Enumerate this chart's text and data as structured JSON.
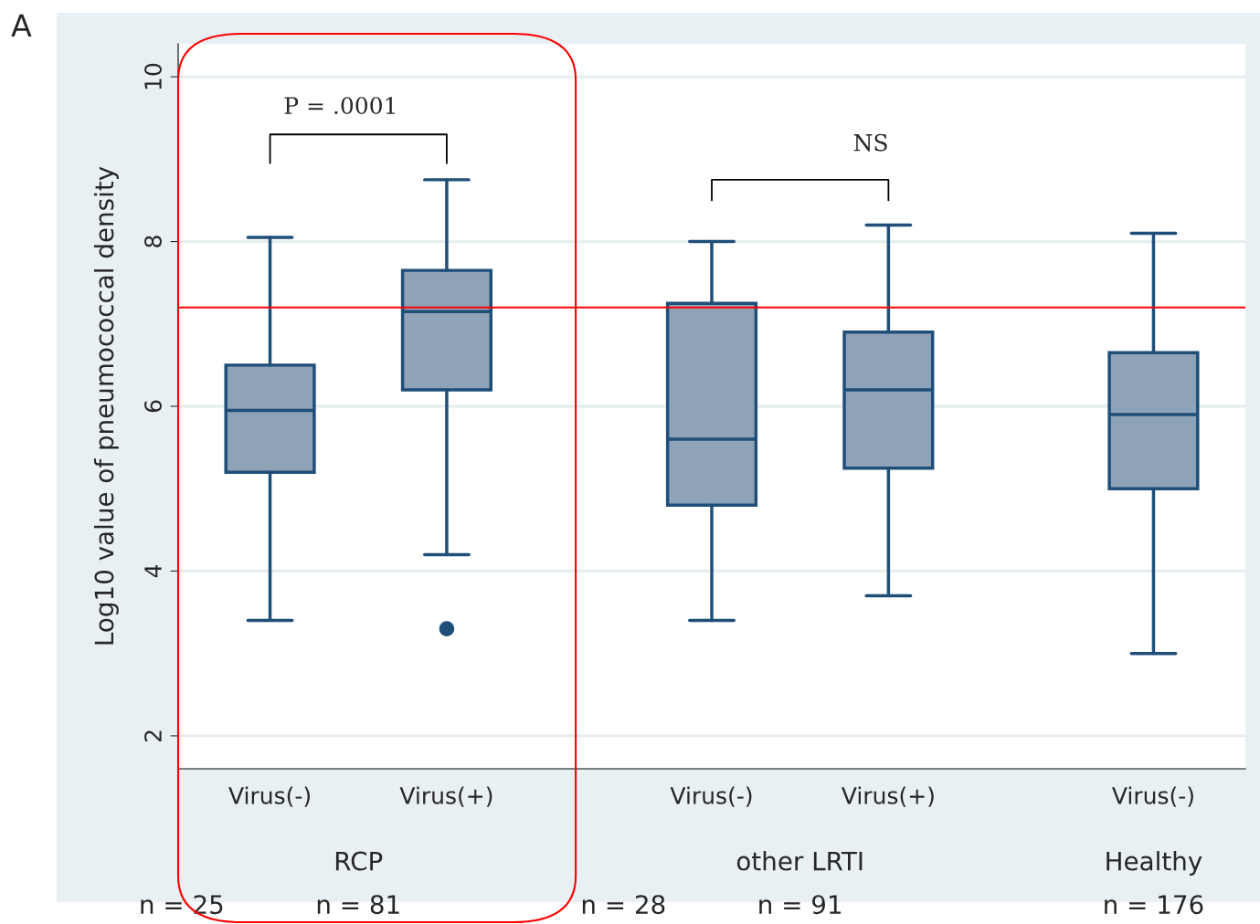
{
  "chart_data": {
    "type": "box",
    "ylabel": "Log10 value of pneumococcal density",
    "categories": [
      "Virus(-)",
      "Virus(+)",
      "Virus(-)",
      "Virus(+)",
      "Virus(-)"
    ],
    "boxes": [
      {
        "low": 3.4,
        "q1": 5.2,
        "median": 5.95,
        "q3": 6.5,
        "high": 8.05
      },
      {
        "low": 4.2,
        "q1": 6.2,
        "median": 7.15,
        "q3": 7.65,
        "high": 8.75,
        "outliers": [
          3.3
        ]
      },
      {
        "low": 3.4,
        "q1": 4.8,
        "median": 5.6,
        "q3": 7.25,
        "high": 8.0
      },
      {
        "low": 3.7,
        "q1": 5.25,
        "median": 6.2,
        "q3": 6.9,
        "high": 8.2
      },
      {
        "low": 3.0,
        "q1": 5.0,
        "median": 5.9,
        "q3": 6.65,
        "high": 8.1
      }
    ],
    "color": "#8fa3b8",
    "ylim": [
      1.6,
      10.4
    ],
    "yticks": [
      2,
      4,
      6,
      8,
      10
    ],
    "grid": "y",
    "ref_lines": [
      {
        "axis": "y",
        "value": 7.2,
        "color": "#ff0000"
      }
    ],
    "annotations": [
      "P = .0001",
      "NS",
      "RCP",
      "other LRTI",
      "Healthy",
      "n = 25",
      "n = 81",
      "n = 28",
      "n = 91",
      "n = 176",
      "A"
    ]
  }
}
